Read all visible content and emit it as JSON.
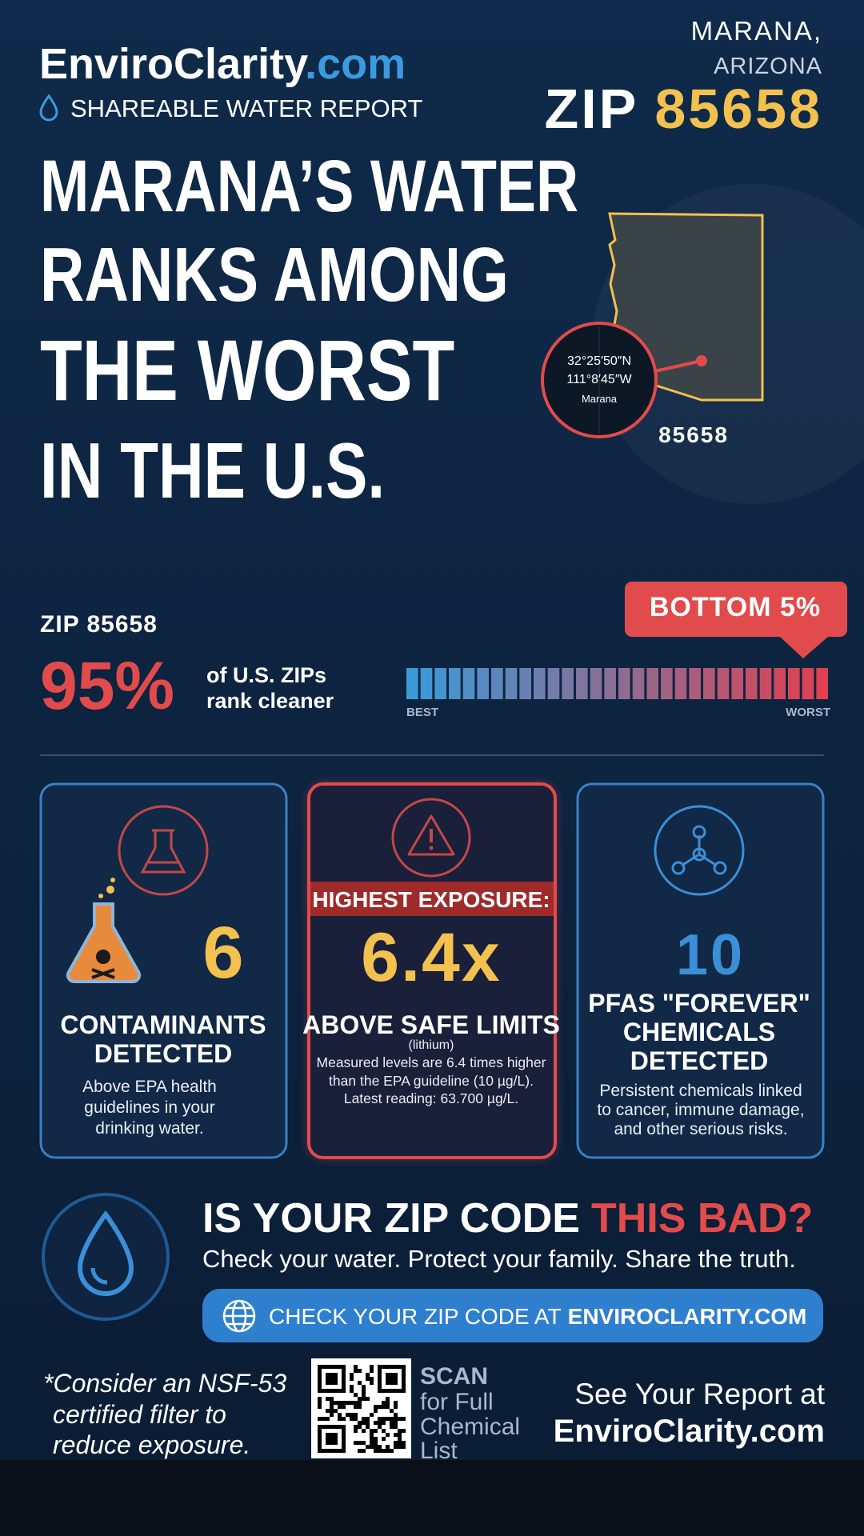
{
  "header": {
    "site_name": "EnviroClarity",
    "site_tld": ".com",
    "subtitle": "SHAREABLE WATER REPORT",
    "city": "MARANA,",
    "state": "ARIZONA",
    "zip_label": "ZIP",
    "zip_code": "85658"
  },
  "headline": [
    "MARANA’S WATER",
    "RANKS AMONG",
    "THE WORST",
    "IN THE U.S."
  ],
  "map": {
    "lat": "32°25′50″N",
    "lon": "111°8′45″W",
    "place": "Marana",
    "zip": "85658"
  },
  "ranking": {
    "zip": "ZIP 85658",
    "percent": "95%",
    "caption": [
      "of U.S. ZIPs",
      "rank cleaner"
    ],
    "badge": "BOTTOM 5%",
    "best": "BEST",
    "worst": "WORST"
  },
  "cards": [
    {
      "figure": "6",
      "title": [
        "CONTAMINANTS",
        "DETECTED"
      ],
      "text": [
        "Above EPA health",
        "guidelines in your",
        "drinking water."
      ]
    },
    {
      "banner": "HIGHEST EXPOSURE:",
      "figure": "6.4x",
      "title": [
        "ABOVE SAFE LIMITS"
      ],
      "note": "(lithium)",
      "text": [
        "Measured levels are 6.4 times higher",
        "than the EPA guideline (10 µg/L).",
        "Latest reading: 63.700 µg/L."
      ]
    },
    {
      "figure": "10",
      "title": [
        "PFAS \"FOREVER\"",
        "CHEMICALS",
        "DETECTED"
      ],
      "text": [
        "Persistent chemicals linked",
        "to cancer, immune damage,",
        "and other serious risks."
      ]
    }
  ],
  "cta": {
    "question": "IS YOUR ZIP CODE",
    "question_accent": "THIS BAD?",
    "tagline": "Check your water. Protect your family. Share the truth.",
    "button": "CHECK YOUR ZIP CODE AT",
    "button_accent": "ENVIROCLARITY.COM"
  },
  "footer": {
    "note": [
      "*Consider an NSF-53",
      "certified filter to",
      "reduce exposure."
    ],
    "scan": [
      "SCAN",
      "for Full",
      "Chemical",
      "List"
    ],
    "report": [
      "See Your Report at",
      "EnviroClarity.com"
    ]
  }
}
